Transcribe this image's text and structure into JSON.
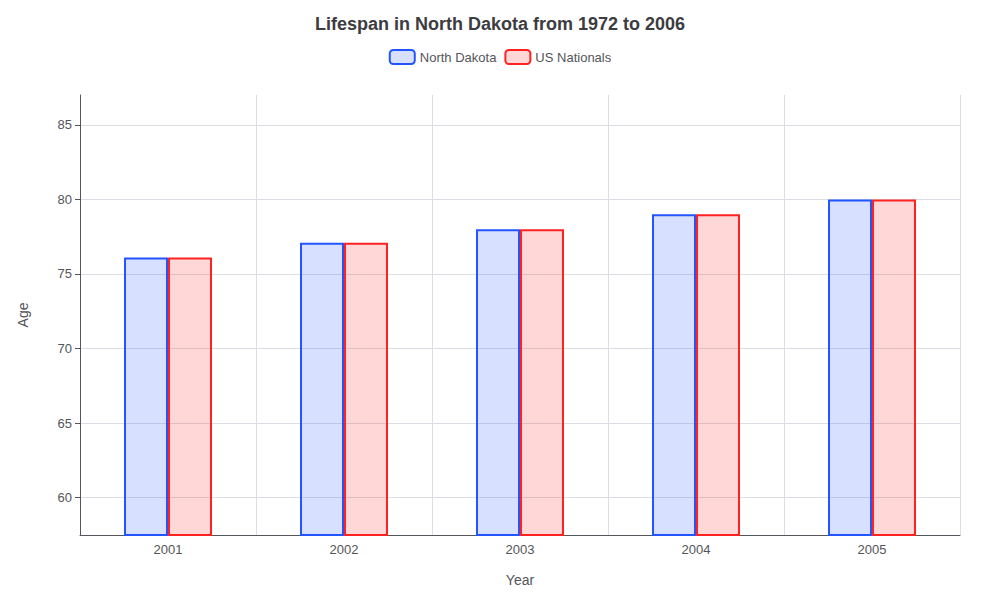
{
  "chart_data": {
    "type": "bar",
    "title": "Lifespan in North Dakota from 1972 to 2006",
    "xlabel": "Year",
    "ylabel": "Age",
    "categories": [
      "2001",
      "2002",
      "2003",
      "2004",
      "2005"
    ],
    "series": [
      {
        "name": "North Dakota",
        "color": "#2255ff",
        "values": [
          76.1,
          77.1,
          78.0,
          79.0,
          80.0
        ]
      },
      {
        "name": "US Nationals",
        "color": "#ff2222",
        "values": [
          76.1,
          77.1,
          78.0,
          79.0,
          80.0
        ]
      }
    ],
    "ylim": [
      57.5,
      87
    ],
    "yticks": [
      60,
      65,
      70,
      75,
      80,
      85
    ],
    "grid": true,
    "legend": "top"
  }
}
